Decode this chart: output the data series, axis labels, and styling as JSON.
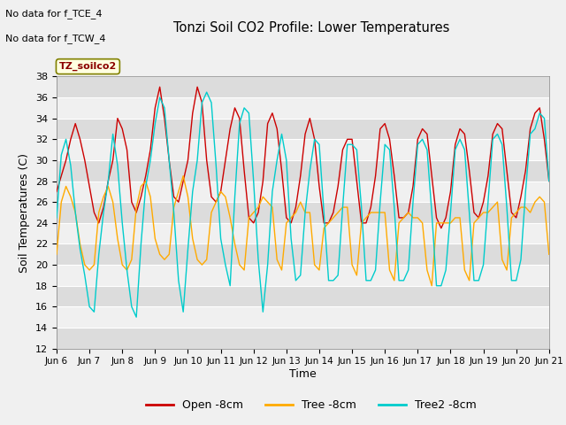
{
  "title": "Tonzi Soil CO2 Profile: Lower Temperatures",
  "ylabel": "Soil Temperatures (C)",
  "xlabel": "Time",
  "ylim": [
    12,
    38
  ],
  "yticks": [
    12,
    14,
    16,
    18,
    20,
    22,
    24,
    26,
    28,
    30,
    32,
    34,
    36,
    38
  ],
  "annotation1": "No data for f_TCE_4",
  "annotation2": "No data for f_TCW_4",
  "subplot_label": "TZ_soilco2",
  "fig_bg_color": "#f0f0f0",
  "plot_bg_color": "#d8d8d8",
  "band_light": "#e8e8e8",
  "band_dark": "#d0d0d0",
  "line_colors": {
    "open": "#cc0000",
    "tree": "#ffaa00",
    "tree2": "#00cccc"
  },
  "legend_labels": [
    "Open -8cm",
    "Tree -8cm",
    "Tree2 -8cm"
  ],
  "x_labels": [
    "Jun 6",
    "Jun 7",
    "Jun 8",
    "Jun 9",
    "Jun 10",
    "Jun 11",
    "Jun 12",
    "Jun 13",
    "Jun 14",
    "Jun 15",
    "Jun 16",
    "Jun 17",
    "Jun 18",
    "Jun 19",
    "Jun 20",
    "Jun 21"
  ],
  "open_8cm": [
    27.0,
    28.5,
    30.0,
    32.0,
    33.5,
    32.0,
    30.0,
    27.5,
    25.0,
    24.0,
    25.5,
    28.0,
    30.0,
    34.0,
    33.0,
    31.0,
    26.0,
    25.0,
    26.5,
    28.5,
    31.0,
    35.0,
    37.0,
    34.0,
    30.0,
    26.5,
    26.0,
    28.0,
    30.0,
    34.5,
    37.0,
    35.5,
    30.0,
    26.5,
    26.0,
    27.0,
    30.0,
    33.0,
    35.0,
    34.0,
    29.0,
    24.5,
    24.0,
    25.0,
    28.0,
    33.5,
    34.5,
    33.0,
    29.0,
    24.5,
    24.0,
    25.5,
    28.5,
    32.5,
    34.0,
    32.0,
    27.5,
    24.0,
    24.0,
    25.0,
    27.5,
    31.0,
    32.0,
    32.0,
    28.0,
    24.0,
    24.0,
    25.5,
    28.5,
    33.0,
    33.5,
    32.0,
    28.5,
    24.5,
    24.5,
    25.0,
    27.5,
    32.0,
    33.0,
    32.5,
    28.5,
    24.5,
    23.5,
    24.5,
    27.0,
    31.5,
    33.0,
    32.5,
    29.0,
    25.0,
    24.5,
    26.0,
    28.5,
    32.5,
    33.5,
    33.0,
    29.0,
    25.0,
    24.5,
    26.5,
    29.0,
    33.0,
    34.5,
    35.0,
    32.0,
    28.0
  ],
  "tree_8cm": [
    21.0,
    26.0,
    27.5,
    26.5,
    25.0,
    22.0,
    20.0,
    19.5,
    20.0,
    25.0,
    26.5,
    27.5,
    26.0,
    22.5,
    20.0,
    19.5,
    20.5,
    25.5,
    27.5,
    28.0,
    26.5,
    22.5,
    21.0,
    20.5,
    21.0,
    25.5,
    27.0,
    28.5,
    26.5,
    22.5,
    20.5,
    20.0,
    20.5,
    25.0,
    26.0,
    27.0,
    26.5,
    24.5,
    22.0,
    20.0,
    19.5,
    24.5,
    25.0,
    25.5,
    26.5,
    26.0,
    25.5,
    20.5,
    19.5,
    24.0,
    24.5,
    25.0,
    26.0,
    25.0,
    25.0,
    20.0,
    19.5,
    23.5,
    24.0,
    24.5,
    25.0,
    25.5,
    25.5,
    20.0,
    19.0,
    24.0,
    24.5,
    25.0,
    25.0,
    25.0,
    25.0,
    19.5,
    18.5,
    24.0,
    24.5,
    25.0,
    24.5,
    24.5,
    24.0,
    19.5,
    18.0,
    24.0,
    24.0,
    24.0,
    24.0,
    24.5,
    24.5,
    19.5,
    18.5,
    24.0,
    24.5,
    25.0,
    25.0,
    25.5,
    26.0,
    20.5,
    19.5,
    24.5,
    25.0,
    25.5,
    25.5,
    25.0,
    26.0,
    26.5,
    26.0,
    21.0
  ],
  "tree2_8cm": [
    24.5,
    30.5,
    32.0,
    29.5,
    25.0,
    21.5,
    19.0,
    16.0,
    15.5,
    21.0,
    25.0,
    28.0,
    32.5,
    29.5,
    24.0,
    19.5,
    16.0,
    15.0,
    22.0,
    27.5,
    30.0,
    33.5,
    36.0,
    35.0,
    30.0,
    25.0,
    18.5,
    15.5,
    21.5,
    27.0,
    30.0,
    35.5,
    36.5,
    35.5,
    29.5,
    22.5,
    20.0,
    18.0,
    26.5,
    33.5,
    35.0,
    34.5,
    28.0,
    20.5,
    15.5,
    20.0,
    27.0,
    30.0,
    32.5,
    30.0,
    22.5,
    18.5,
    19.0,
    25.0,
    29.0,
    32.0,
    31.5,
    25.0,
    18.5,
    18.5,
    19.0,
    25.5,
    31.5,
    31.5,
    31.0,
    25.5,
    18.5,
    18.5,
    19.5,
    26.0,
    31.5,
    31.0,
    25.5,
    18.5,
    18.5,
    19.5,
    26.0,
    31.5,
    32.0,
    31.0,
    25.0,
    18.0,
    18.0,
    19.5,
    25.0,
    31.0,
    32.0,
    31.0,
    25.0,
    18.5,
    18.5,
    20.0,
    26.0,
    32.0,
    32.5,
    31.5,
    25.5,
    18.5,
    18.5,
    20.5,
    27.0,
    32.5,
    33.0,
    34.5,
    34.0,
    28.0
  ]
}
